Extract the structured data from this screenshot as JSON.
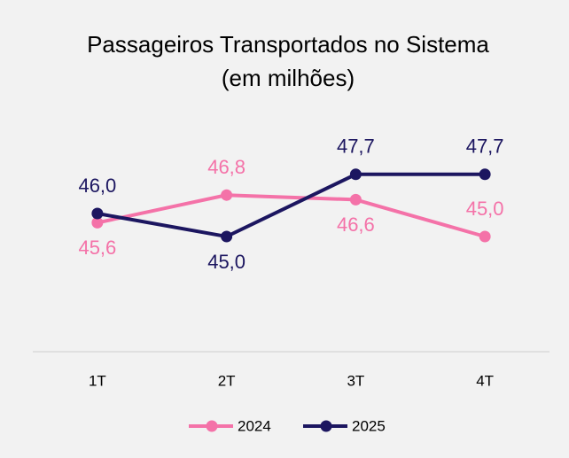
{
  "chart_data": {
    "type": "line",
    "title": [
      "Passageiros Transportados no Sistema",
      "(em milhões)"
    ],
    "categories": [
      "1T",
      "2T",
      "3T",
      "4T"
    ],
    "series": [
      {
        "name": "2024",
        "color": "#f472a8",
        "values": [
          45.6,
          46.8,
          46.6,
          45.0
        ],
        "value_labels": [
          "45,6",
          "46,8",
          "46,6",
          "45,0"
        ]
      },
      {
        "name": "2025",
        "color": "#1c1660",
        "values": [
          46.0,
          45.0,
          47.7,
          47.7
        ],
        "value_labels": [
          "46,0",
          "45,0",
          "47,7",
          "47,7"
        ]
      }
    ],
    "ylim": [
      40,
      50
    ],
    "legend": "bottom"
  }
}
